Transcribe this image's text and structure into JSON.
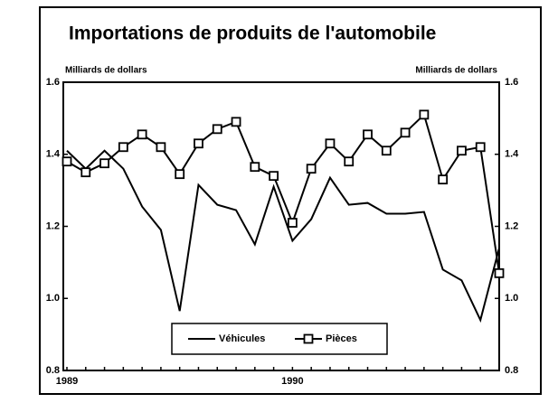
{
  "chart_data": {
    "type": "line",
    "title": "Importations de produits de l'automobile",
    "y_label": "Milliards de dollars",
    "y2_label": "Milliards de dollars",
    "categories": [
      "1989",
      null,
      null,
      null,
      null,
      null,
      null,
      null,
      null,
      null,
      null,
      null,
      "1990",
      null,
      null,
      null,
      null,
      null,
      null,
      null,
      null,
      null,
      null,
      null
    ],
    "series": [
      {
        "name": "Véhicules",
        "color": "#000000",
        "marker": "none",
        "values": [
          1.41,
          1.36,
          1.41,
          1.36,
          1.255,
          1.19,
          0.965,
          1.315,
          1.26,
          1.245,
          1.15,
          1.31,
          1.16,
          1.22,
          1.335,
          1.26,
          1.265,
          1.235,
          1.235,
          1.24,
          1.08,
          1.05,
          0.94,
          1.14
        ]
      },
      {
        "name": "Pièces",
        "color": "#000000",
        "marker": "square",
        "values": [
          1.38,
          1.35,
          1.375,
          1.42,
          1.455,
          1.42,
          1.345,
          1.43,
          1.47,
          1.49,
          1.365,
          1.34,
          1.21,
          1.36,
          1.43,
          1.38,
          1.455,
          1.41,
          1.46,
          1.51,
          1.33,
          1.41,
          1.42,
          1.07
        ]
      }
    ],
    "ylim": [
      0.8,
      1.6
    ],
    "yticks": [
      0.8,
      {
        "value": 1,
        "label": "1.0"
      },
      1.2,
      1.4,
      1.6
    ],
    "y2lim": [
      0.8,
      1.6
    ],
    "y2ticks": [
      0.8,
      {
        "value": 1,
        "label": "1.0"
      },
      1.2,
      1.4,
      1.6
    ],
    "grid": false,
    "legend": "bottom"
  }
}
